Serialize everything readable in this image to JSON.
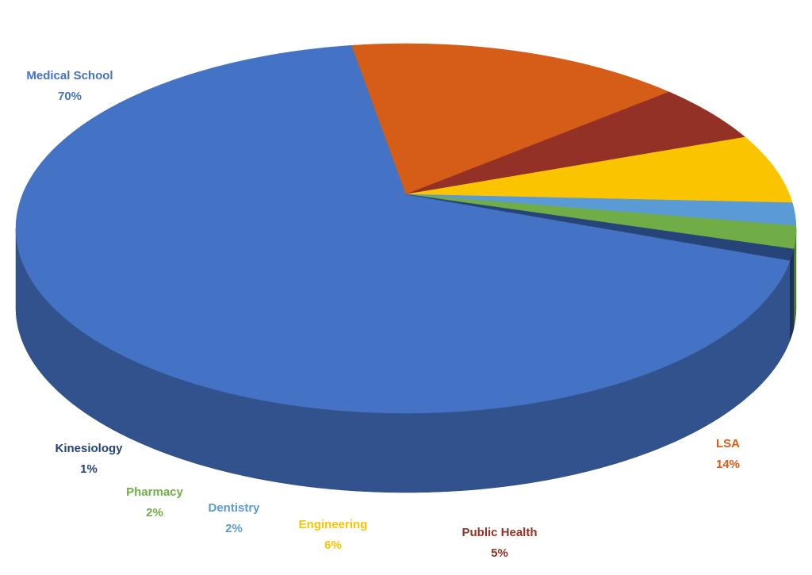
{
  "chart_data": {
    "type": "pie",
    "categories": [
      "Medical School",
      "LSA",
      "Public Health",
      "Engineering",
      "Dentistry",
      "Pharmacy",
      "Kinesiology"
    ],
    "values": [
      70,
      14,
      5,
      6,
      2,
      2,
      1
    ],
    "value_labels": [
      "70%",
      "14%",
      "5%",
      "6%",
      "2%",
      "2%",
      "1%"
    ],
    "colors": [
      "#4472c4",
      "#d55d17",
      "#943126",
      "#fbc400",
      "#5b9bd5",
      "#70ad47",
      "#264478"
    ]
  }
}
